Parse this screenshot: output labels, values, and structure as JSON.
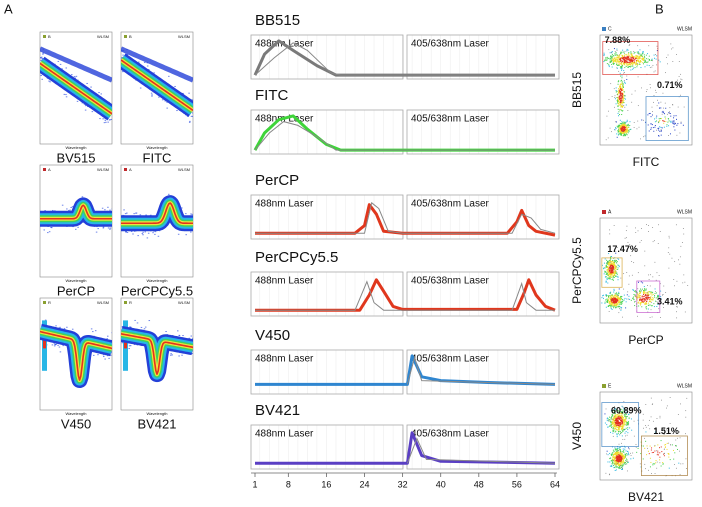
{
  "panel_labels": [
    "A",
    "B"
  ],
  "density_plots": [
    {
      "name": "BV515",
      "tag": "B",
      "watermark": "WLSM",
      "x_label": "Wavelength"
    },
    {
      "name": "FITC",
      "tag": "B",
      "watermark": "WLSM",
      "x_label": "Wavelength"
    },
    {
      "name": "PerCP",
      "tag": "A",
      "watermark": "WLSM",
      "x_label": "Wavelength"
    },
    {
      "name": "PerCPCy5.5",
      "tag": "A",
      "watermark": "WLSM",
      "x_label": "Wavelength"
    },
    {
      "name": "V450",
      "tag": "R",
      "watermark": "WLSM",
      "x_label": "Wavelength"
    },
    {
      "name": "BV421",
      "tag": "R",
      "watermark": "WLSM",
      "x_label": "Wavelength"
    }
  ],
  "spectra": [
    {
      "name": "BB515",
      "lasers": [
        "488nm Laser",
        "405/638nm Laser"
      ]
    },
    {
      "name": "FITC",
      "lasers": [
        "488nm Laser",
        "405/638nm Laser"
      ]
    },
    {
      "name": "PerCP",
      "lasers": [
        "488nm Laser",
        "405/638nm Laser"
      ]
    },
    {
      "name": "PerCPCy5.5",
      "lasers": [
        "488nm Laser",
        "405/638nm Laser"
      ]
    },
    {
      "name": "V450",
      "lasers": [
        "488nm Laser",
        "405/638nm Laser"
      ]
    },
    {
      "name": "BV421",
      "lasers": [
        "488nm Laser",
        "405/638nm Laser"
      ]
    }
  ],
  "spectra_axis": {
    "ticks": [
      1,
      8,
      16,
      24,
      32,
      40,
      48,
      56,
      64
    ]
  },
  "dot_plots": [
    {
      "y_label": "BB515",
      "x_label": "FITC",
      "tag": "C",
      "watermark": "WLSM",
      "gates": [
        {
          "label": "7.88%",
          "color": "#d9312b"
        },
        {
          "label": "0.71%",
          "color": "#3a7fc1"
        }
      ]
    },
    {
      "y_label": "PerCPCy5.5",
      "x_label": "PerCP",
      "tag": "A",
      "watermark": "WLSM",
      "gates": [
        {
          "label": "17.47%",
          "color": "#d4a02a"
        },
        {
          "label": "3.41%",
          "color": "#c04fc9"
        }
      ]
    },
    {
      "y_label": "V450",
      "x_label": "BV421",
      "tag": "E",
      "watermark": "WLSM",
      "gates": [
        {
          "label": "60.89%",
          "color": "#3a7fc1"
        },
        {
          "label": "1.51%",
          "color": "#a0722a"
        }
      ]
    }
  ]
}
